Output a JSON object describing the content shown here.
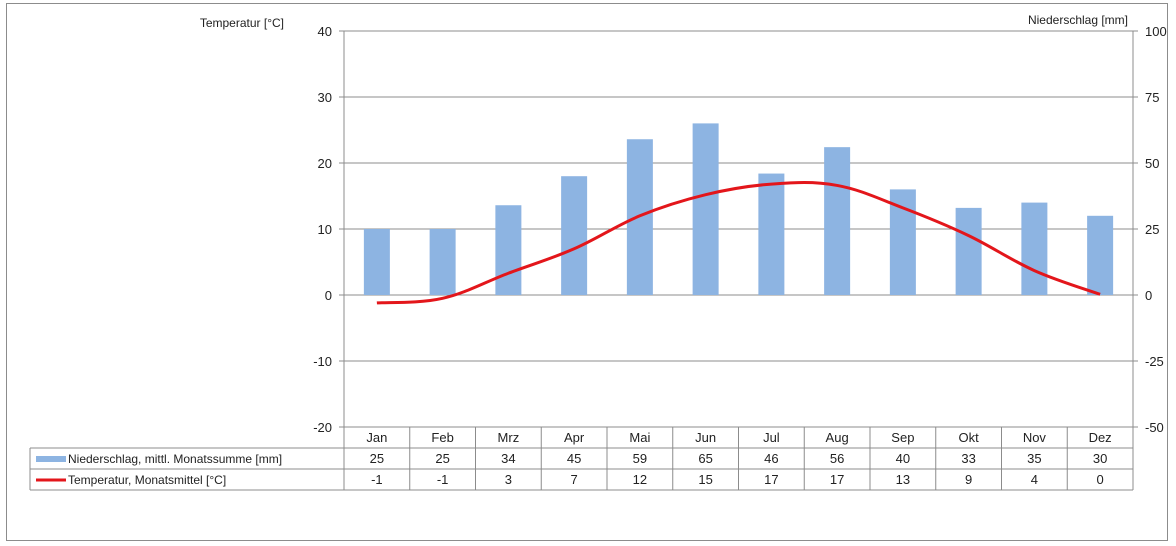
{
  "chart_data": {
    "type": "bar",
    "left_axis_title": "Temperatur [°C]",
    "right_axis_title": "Niederschlag [mm]",
    "categories": [
      "Jan",
      "Feb",
      "Mrz",
      "Apr",
      "Mai",
      "Jun",
      "Jul",
      "Aug",
      "Sep",
      "Okt",
      "Nov",
      "Dez"
    ],
    "left_axis": {
      "min": -20,
      "max": 40,
      "ticks": [
        40,
        30,
        20,
        10,
        0,
        -10,
        -20
      ]
    },
    "right_axis": {
      "min": -50,
      "max": 100,
      "ticks": [
        100,
        75,
        50,
        25,
        0,
        -25,
        -50
      ]
    },
    "grid": true,
    "series": [
      {
        "name": "Niederschlag, mittl. Monatssumme [mm]",
        "type": "bar",
        "axis": "right",
        "color": "#8db4e2",
        "values": [
          25,
          25,
          34,
          45,
          59,
          65,
          46,
          56,
          40,
          33,
          35,
          30
        ],
        "table_values": [
          "25",
          "25",
          "34",
          "45",
          "59",
          "65",
          "46",
          "56",
          "40",
          "33",
          "35",
          "30"
        ]
      },
      {
        "name": "Temperatur, Monatsmittel [°C]",
        "type": "line",
        "axis": "left",
        "color": "#e3161b",
        "values": [
          -1.2,
          -0.5,
          3.3,
          7.0,
          12.0,
          15.2,
          16.8,
          16.6,
          13.2,
          9.0,
          3.7,
          0.1
        ],
        "table_values": [
          "-1",
          "-1",
          "3",
          "7",
          "12",
          "15",
          "17",
          "17",
          "13",
          "9",
          "4",
          "0"
        ]
      }
    ]
  }
}
